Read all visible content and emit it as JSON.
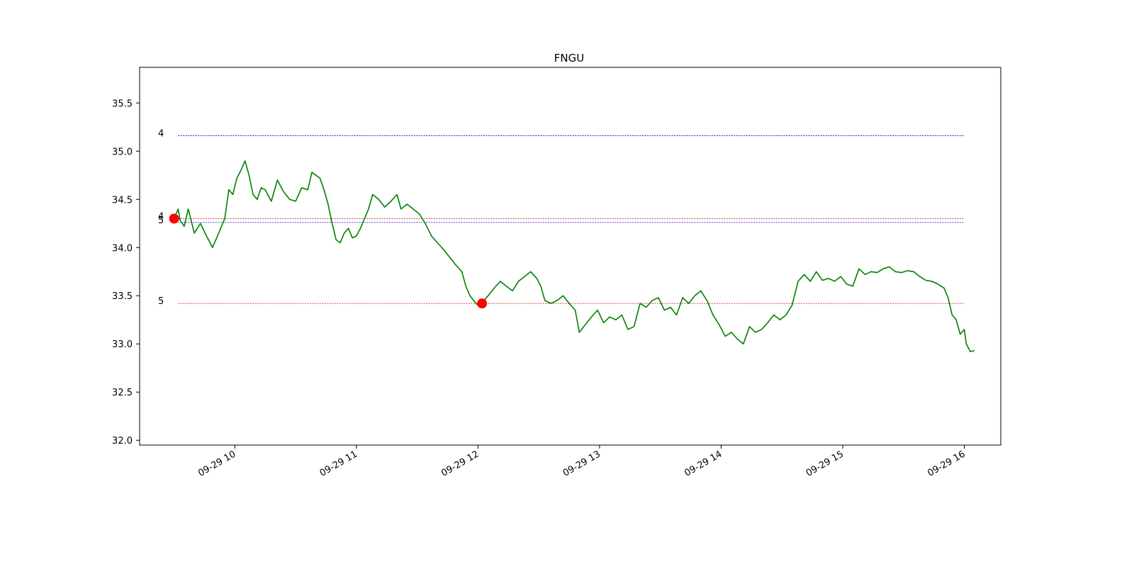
{
  "chart_data": {
    "type": "line",
    "title": "FNGU",
    "xlabel": "",
    "ylabel": "",
    "ylim": [
      31.95,
      35.87
    ],
    "xlim": [
      "2022-09-29 09:13",
      "2022-09-29 16:18"
    ],
    "grid": false,
    "legend": "none",
    "x_ticks": [
      "09-29 10",
      "09-29 11",
      "09-29 12",
      "09-29 13",
      "09-29 14",
      "09-29 15",
      "09-29 16"
    ],
    "y_ticks": [
      "32.0",
      "32.5",
      "33.0",
      "33.5",
      "34.0",
      "34.5",
      "35.0",
      "35.5"
    ],
    "colors": {
      "series": "#008000",
      "level_blue": "#0000cc",
      "level_red": "#cc0000",
      "marker": "#ff0000"
    },
    "series": [
      {
        "color": "#008000",
        "points": [
          [
            "09:30",
            34.3
          ],
          [
            "09:32",
            34.4
          ],
          [
            "09:33",
            34.28
          ],
          [
            "09:35",
            34.22
          ],
          [
            "09:37",
            34.4
          ],
          [
            "09:40",
            34.15
          ],
          [
            "09:43",
            34.25
          ],
          [
            "09:46",
            34.12
          ],
          [
            "09:49",
            34.0
          ],
          [
            "09:52",
            34.15
          ],
          [
            "09:55",
            34.3
          ],
          [
            "09:57",
            34.6
          ],
          [
            "09:59",
            34.55
          ],
          [
            "10:01",
            34.72
          ],
          [
            "10:03",
            34.8
          ],
          [
            "10:05",
            34.9
          ],
          [
            "10:07",
            34.75
          ],
          [
            "10:09",
            34.55
          ],
          [
            "10:11",
            34.5
          ],
          [
            "10:13",
            34.62
          ],
          [
            "10:15",
            34.6
          ],
          [
            "10:18",
            34.48
          ],
          [
            "10:21",
            34.7
          ],
          [
            "10:24",
            34.58
          ],
          [
            "10:27",
            34.5
          ],
          [
            "10:30",
            34.48
          ],
          [
            "10:33",
            34.62
          ],
          [
            "10:36",
            34.6
          ],
          [
            "10:38",
            34.78
          ],
          [
            "10:40",
            34.75
          ],
          [
            "10:42",
            34.72
          ],
          [
            "10:44",
            34.6
          ],
          [
            "10:46",
            34.45
          ],
          [
            "10:48",
            34.25
          ],
          [
            "10:50",
            34.08
          ],
          [
            "10:52",
            34.05
          ],
          [
            "10:54",
            34.15
          ],
          [
            "10:56",
            34.2
          ],
          [
            "10:58",
            34.1
          ],
          [
            "11:00",
            34.12
          ],
          [
            "11:02",
            34.2
          ],
          [
            "11:04",
            34.3
          ],
          [
            "11:06",
            34.4
          ],
          [
            "11:08",
            34.55
          ],
          [
            "11:11",
            34.5
          ],
          [
            "11:14",
            34.42
          ],
          [
            "11:17",
            34.48
          ],
          [
            "11:20",
            34.55
          ],
          [
            "11:22",
            34.4
          ],
          [
            "11:25",
            34.45
          ],
          [
            "11:28",
            34.4
          ],
          [
            "11:31",
            34.35
          ],
          [
            "11:34",
            34.25
          ],
          [
            "11:37",
            34.12
          ],
          [
            "11:40",
            34.05
          ],
          [
            "11:43",
            33.98
          ],
          [
            "11:46",
            33.9
          ],
          [
            "11:49",
            33.82
          ],
          [
            "11:52",
            33.75
          ],
          [
            "11:54",
            33.6
          ],
          [
            "11:56",
            33.5
          ],
          [
            "11:59",
            33.42
          ],
          [
            "12:01",
            33.38
          ],
          [
            "12:03",
            33.45
          ],
          [
            "12:05",
            33.5
          ],
          [
            "12:08",
            33.58
          ],
          [
            "12:11",
            33.65
          ],
          [
            "12:14",
            33.6
          ],
          [
            "12:17",
            33.55
          ],
          [
            "12:20",
            33.65
          ],
          [
            "12:23",
            33.7
          ],
          [
            "12:26",
            33.75
          ],
          [
            "12:29",
            33.68
          ],
          [
            "12:31",
            33.6
          ],
          [
            "12:33",
            33.45
          ],
          [
            "12:36",
            33.42
          ],
          [
            "12:39",
            33.45
          ],
          [
            "12:42",
            33.5
          ],
          [
            "12:45",
            33.42
          ],
          [
            "12:48",
            33.35
          ],
          [
            "12:50",
            33.12
          ],
          [
            "12:53",
            33.2
          ],
          [
            "12:56",
            33.28
          ],
          [
            "12:59",
            33.35
          ],
          [
            "13:02",
            33.22
          ],
          [
            "13:05",
            33.28
          ],
          [
            "13:08",
            33.25
          ],
          [
            "13:11",
            33.3
          ],
          [
            "13:14",
            33.15
          ],
          [
            "13:17",
            33.18
          ],
          [
            "13:20",
            33.42
          ],
          [
            "13:23",
            33.38
          ],
          [
            "13:26",
            33.45
          ],
          [
            "13:29",
            33.48
          ],
          [
            "13:32",
            33.35
          ],
          [
            "13:35",
            33.38
          ],
          [
            "13:38",
            33.3
          ],
          [
            "13:41",
            33.48
          ],
          [
            "13:44",
            33.42
          ],
          [
            "13:47",
            33.5
          ],
          [
            "13:50",
            33.55
          ],
          [
            "13:53",
            33.45
          ],
          [
            "13:56",
            33.3
          ],
          [
            "13:59",
            33.2
          ],
          [
            "14:02",
            33.08
          ],
          [
            "14:05",
            33.12
          ],
          [
            "14:08",
            33.05
          ],
          [
            "14:11",
            33.0
          ],
          [
            "14:14",
            33.18
          ],
          [
            "14:17",
            33.12
          ],
          [
            "14:20",
            33.15
          ],
          [
            "14:23",
            33.22
          ],
          [
            "14:26",
            33.3
          ],
          [
            "14:29",
            33.25
          ],
          [
            "14:32",
            33.3
          ],
          [
            "14:35",
            33.4
          ],
          [
            "14:38",
            33.65
          ],
          [
            "14:41",
            33.72
          ],
          [
            "14:44",
            33.65
          ],
          [
            "14:47",
            33.75
          ],
          [
            "14:50",
            33.66
          ],
          [
            "14:53",
            33.68
          ],
          [
            "14:56",
            33.65
          ],
          [
            "14:59",
            33.7
          ],
          [
            "15:02",
            33.62
          ],
          [
            "15:05",
            33.6
          ],
          [
            "15:08",
            33.78
          ],
          [
            "15:11",
            33.72
          ],
          [
            "15:14",
            33.75
          ],
          [
            "15:17",
            33.74
          ],
          [
            "15:20",
            33.78
          ],
          [
            "15:23",
            33.8
          ],
          [
            "15:26",
            33.75
          ],
          [
            "15:29",
            33.74
          ],
          [
            "15:32",
            33.76
          ],
          [
            "15:35",
            33.75
          ],
          [
            "15:38",
            33.7
          ],
          [
            "15:41",
            33.66
          ],
          [
            "15:44",
            33.65
          ],
          [
            "15:47",
            33.62
          ],
          [
            "15:50",
            33.58
          ],
          [
            "15:52",
            33.48
          ],
          [
            "15:54",
            33.3
          ],
          [
            "15:56",
            33.25
          ],
          [
            "15:58",
            33.1
          ],
          [
            "16:00",
            33.15
          ],
          [
            "16:01",
            33.0
          ],
          [
            "16:03",
            32.92
          ],
          [
            "16:05",
            32.93
          ]
        ]
      }
    ],
    "levels": [
      {
        "label": "4",
        "value": 35.16,
        "color": "#0000cc",
        "x_start": "09:32",
        "x_end": "16:00"
      },
      {
        "label": "4",
        "value": 34.3,
        "color": "#cc0000",
        "x_start": "09:32",
        "x_end": "16:00"
      },
      {
        "label": "5",
        "value": 34.26,
        "color": "#0000cc",
        "x_start": "09:32",
        "x_end": "16:00"
      },
      {
        "label": "5",
        "value": 33.42,
        "color": "#cc0000",
        "x_start": "09:32",
        "x_end": "16:00"
      }
    ],
    "markers": [
      {
        "x": "09:30",
        "y": 34.3,
        "color": "#ff0000"
      },
      {
        "x": "12:02",
        "y": 33.42,
        "color": "#ff0000"
      }
    ]
  }
}
